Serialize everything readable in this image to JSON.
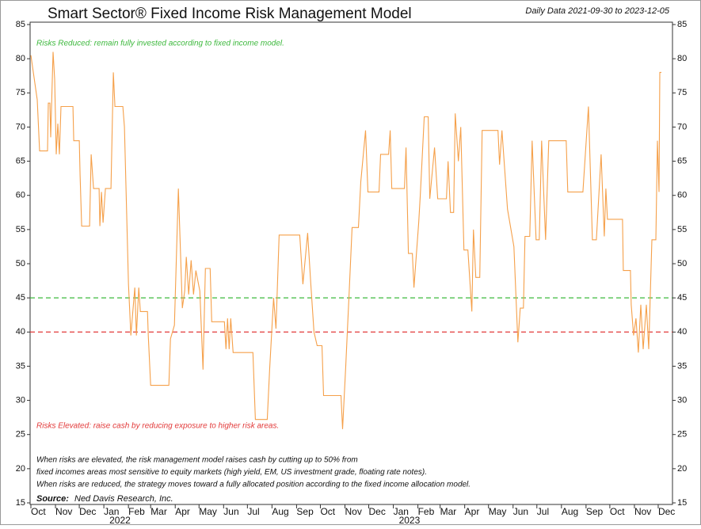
{
  "chart_data": {
    "type": "line",
    "title": "Smart Sector® Fixed Income Risk Management Model",
    "subtitle": "Daily Data 2021-09-30 to 2023-12-05",
    "annotations": [
      {
        "text": "Risks Reduced: remain fully invested according to fixed income model.",
        "color": "#3cb83c"
      },
      {
        "text": "Risks Elevated: raise cash by reducing exposure to higher risk areas.",
        "color": "#e23a3a"
      }
    ],
    "notes": [
      "When risks are elevated, the risk management model raises cash by cutting up to 50% from",
      "fixed incomes areas most sensitive to equity markets (high yield, EM, US investment grade, floating rate notes).",
      "When risks are reduced, the strategy moves toward a fully allocated position according to the fixed income allocation model."
    ],
    "source_label": "Source:",
    "source": "Ned Davis Research, Inc.",
    "reference_lines": [
      {
        "value": 45,
        "color": "#3cb83c"
      },
      {
        "value": 40,
        "color": "#e23a3a"
      }
    ],
    "xlim": [
      "2021-09-30",
      "2023-12-19"
    ],
    "ylim": [
      15,
      85
    ],
    "yticks": [
      15,
      20,
      25,
      30,
      35,
      40,
      45,
      50,
      55,
      60,
      65,
      70,
      75,
      80,
      85
    ],
    "xticks": [
      {
        "value": "2021-10-01",
        "label": "Oct"
      },
      {
        "value": "2021-11-01",
        "label": "Nov"
      },
      {
        "value": "2021-12-01",
        "label": "Dec"
      },
      {
        "value": "2022-01-01",
        "label": "Jan"
      },
      {
        "value": "2022-02-01",
        "label": "Feb"
      },
      {
        "value": "2022-03-01",
        "label": "Mar"
      },
      {
        "value": "2022-04-01",
        "label": "Apr"
      },
      {
        "value": "2022-05-01",
        "label": "May"
      },
      {
        "value": "2022-06-01",
        "label": "Jun"
      },
      {
        "value": "2022-07-01",
        "label": "Jul"
      },
      {
        "value": "2022-08-01",
        "label": "Aug"
      },
      {
        "value": "2022-09-01",
        "label": "Sep"
      },
      {
        "value": "2022-10-01",
        "label": "Oct"
      },
      {
        "value": "2022-11-01",
        "label": "Nov"
      },
      {
        "value": "2022-12-01",
        "label": "Dec"
      },
      {
        "value": "2023-01-01",
        "label": "Jan"
      },
      {
        "value": "2023-02-01",
        "label": "Feb"
      },
      {
        "value": "2023-03-01",
        "label": "Mar"
      },
      {
        "value": "2023-04-01",
        "label": "Apr"
      },
      {
        "value": "2023-05-01",
        "label": "May"
      },
      {
        "value": "2023-06-01",
        "label": "Jun"
      },
      {
        "value": "2023-07-01",
        "label": "Jul"
      },
      {
        "value": "2023-08-01",
        "label": "Aug"
      },
      {
        "value": "2023-09-01",
        "label": "Sep"
      },
      {
        "value": "2023-10-01",
        "label": "Oct"
      },
      {
        "value": "2023-11-01",
        "label": "Nov"
      },
      {
        "value": "2023-12-01",
        "label": "Dec"
      }
    ],
    "year_labels": [
      {
        "value": "2022-01-01",
        "label": "2022"
      },
      {
        "value": "2023-01-01",
        "label": "2023"
      }
    ],
    "color": "#f5a04a",
    "x": [
      "2021-10-01",
      "2021-10-09",
      "2021-10-12",
      "2021-10-22",
      "2021-10-23",
      "2021-10-25",
      "2021-10-26",
      "2021-10-29",
      "2021-10-31",
      "2021-11-02",
      "2021-11-04",
      "2021-11-06",
      "2021-11-08",
      "2021-11-23",
      "2021-11-24",
      "2021-12-01",
      "2021-12-02",
      "2021-12-04",
      "2021-12-14",
      "2021-12-16",
      "2021-12-19",
      "2021-12-26",
      "2021-12-27",
      "2021-12-29",
      "2021-12-31",
      "2022-01-03",
      "2022-01-10",
      "2022-01-13",
      "2022-01-15",
      "2022-01-25",
      "2022-01-27",
      "2022-02-01",
      "2022-02-04",
      "2022-02-09",
      "2022-02-11",
      "2022-02-14",
      "2022-02-16",
      "2022-02-25",
      "2022-02-26",
      "2022-03-01",
      "2022-03-24",
      "2022-03-26",
      "2022-03-31",
      "2022-04-05",
      "2022-04-10",
      "2022-04-13",
      "2022-04-15",
      "2022-04-18",
      "2022-04-21",
      "2022-04-24",
      "2022-04-27",
      "2022-05-02",
      "2022-05-06",
      "2022-05-09",
      "2022-05-15",
      "2022-05-17",
      "2022-06-02",
      "2022-06-04",
      "2022-06-06",
      "2022-06-08",
      "2022-06-10",
      "2022-06-13",
      "2022-07-08",
      "2022-07-11",
      "2022-07-26",
      "2022-07-29",
      "2022-08-03",
      "2022-08-06",
      "2022-08-10",
      "2022-09-05",
      "2022-09-09",
      "2022-09-15",
      "2022-09-19",
      "2022-09-23",
      "2022-09-27",
      "2022-10-03",
      "2022-10-05",
      "2022-10-27",
      "2022-10-29",
      "2022-11-02",
      "2022-11-06",
      "2022-11-10",
      "2022-11-18",
      "2022-11-21",
      "2022-11-27",
      "2022-11-30",
      "2022-12-14",
      "2022-12-16",
      "2022-12-26",
      "2022-12-28",
      "2022-12-30",
      "2023-01-15",
      "2023-01-17",
      "2023-01-20",
      "2023-01-25",
      "2023-01-27",
      "2023-02-02",
      "2023-02-04",
      "2023-02-09",
      "2023-02-14",
      "2023-02-16",
      "2023-02-22",
      "2023-02-26",
      "2023-03-09",
      "2023-03-11",
      "2023-03-14",
      "2023-03-18",
      "2023-03-20",
      "2023-03-24",
      "2023-03-27",
      "2023-03-31",
      "2023-04-05",
      "2023-04-10",
      "2023-04-12",
      "2023-04-15",
      "2023-04-20",
      "2023-04-23",
      "2023-05-13",
      "2023-05-15",
      "2023-05-18",
      "2023-05-25",
      "2023-06-02",
      "2023-06-07",
      "2023-06-10",
      "2023-06-14",
      "2023-06-16",
      "2023-06-22",
      "2023-06-25",
      "2023-06-30",
      "2023-07-04",
      "2023-07-07",
      "2023-07-12",
      "2023-07-16",
      "2023-08-07",
      "2023-08-09",
      "2023-08-28",
      "2023-09-04",
      "2023-09-09",
      "2023-09-14",
      "2023-09-20",
      "2023-09-24",
      "2023-09-26",
      "2023-09-28",
      "2023-10-17",
      "2023-10-18",
      "2023-10-27",
      "2023-10-28",
      "2023-10-31",
      "2023-11-03",
      "2023-11-06",
      "2023-11-09",
      "2023-11-12",
      "2023-11-16",
      "2023-11-19",
      "2023-11-23",
      "2023-11-28",
      "2023-11-30",
      "2023-12-02",
      "2023-12-03",
      "2023-12-05"
    ],
    "values": [
      80.5,
      74,
      66.5,
      66.5,
      73.5,
      73.5,
      68.5,
      81,
      77,
      66,
      70.5,
      66,
      73,
      73,
      68,
      68,
      63,
      55.5,
      55.5,
      66,
      61,
      61,
      55.5,
      60.5,
      56,
      61,
      61,
      78,
      73,
      73,
      70,
      47,
      39.5,
      46.5,
      39.5,
      46.5,
      43,
      43,
      39.5,
      32.2,
      32.2,
      39,
      41,
      61,
      43.5,
      46,
      51,
      45.5,
      50.5,
      45.5,
      49,
      46,
      34.5,
      49.3,
      49.3,
      41.5,
      41.5,
      37.5,
      42,
      37.5,
      42,
      37,
      37,
      27.2,
      27.2,
      34.5,
      45,
      40.5,
      54.2,
      54.2,
      47,
      54.5,
      47,
      40,
      38,
      38,
      30.7,
      30.7,
      25.8,
      35,
      45,
      55.3,
      55.3,
      62,
      69.5,
      60.5,
      60.5,
      66,
      66,
      69.5,
      61,
      61,
      67,
      51.5,
      51.5,
      46.5,
      56,
      60,
      71.5,
      71.5,
      59.5,
      67,
      59.5,
      59.5,
      65,
      57.5,
      57.5,
      72,
      65,
      70,
      52,
      52,
      43,
      55,
      48,
      48,
      69.5,
      69.5,
      64.5,
      69.5,
      58,
      52.5,
      38.5,
      43.5,
      43.5,
      54,
      54,
      68,
      53.5,
      53.5,
      68,
      53.5,
      68,
      68,
      60.5,
      60.5,
      73,
      53.5,
      53.5,
      66,
      54,
      61,
      56.5,
      56.5,
      49,
      49,
      44,
      39.5,
      42,
      37,
      44,
      37.5,
      44,
      37.5,
      53.5,
      53.5,
      68,
      60.5,
      78,
      78
    ]
  }
}
